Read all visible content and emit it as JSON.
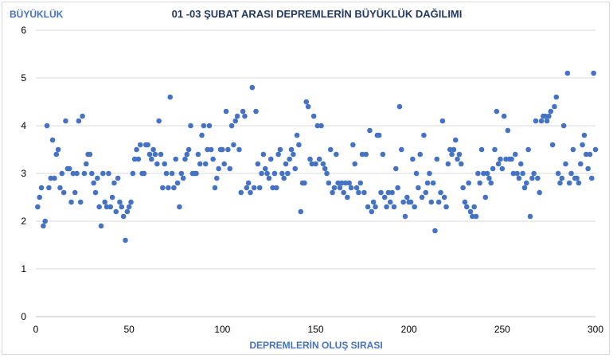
{
  "chart_data": {
    "type": "scatter",
    "title": "01 -03 ŞUBAT  ARASI DEPREMLERİN BÜYÜKLÜK DAĞILIMI",
    "xlabel": "DEPREMLERİN OLUŞ SIRASI",
    "ylabel": "BÜYÜKLÜK",
    "xlim": [
      0,
      300
    ],
    "ylim": [
      0,
      6
    ],
    "x_ticks": [
      0,
      50,
      100,
      150,
      200,
      250,
      300
    ],
    "y_ticks": [
      0,
      1,
      2,
      3,
      4,
      5,
      6
    ],
    "grid": "horizontal",
    "legend": "none",
    "marker_color": "#4472c4",
    "points": [
      [
        1,
        2.3
      ],
      [
        2,
        2.5
      ],
      [
        3,
        2.7
      ],
      [
        4,
        1.9
      ],
      [
        5,
        2.0
      ],
      [
        6,
        4.0
      ],
      [
        7,
        2.7
      ],
      [
        8,
        2.9
      ],
      [
        9,
        3.7
      ],
      [
        10,
        2.9
      ],
      [
        11,
        3.4
      ],
      [
        12,
        3.5
      ],
      [
        13,
        2.7
      ],
      [
        14,
        3.0
      ],
      [
        15,
        2.6
      ],
      [
        16,
        4.1
      ],
      [
        17,
        3.1
      ],
      [
        18,
        3.1
      ],
      [
        19,
        2.4
      ],
      [
        20,
        3.0
      ],
      [
        21,
        2.6
      ],
      [
        22,
        3.0
      ],
      [
        23,
        4.1
      ],
      [
        24,
        2.4
      ],
      [
        25,
        4.2
      ],
      [
        26,
        3.0
      ],
      [
        27,
        3.2
      ],
      [
        28,
        3.4
      ],
      [
        29,
        3.4
      ],
      [
        30,
        3.0
      ],
      [
        31,
        2.8
      ],
      [
        32,
        2.6
      ],
      [
        33,
        2.9
      ],
      [
        34,
        2.3
      ],
      [
        35,
        1.9
      ],
      [
        36,
        3.0
      ],
      [
        37,
        2.4
      ],
      [
        38,
        2.3
      ],
      [
        39,
        3.0
      ],
      [
        40,
        2.3
      ],
      [
        41,
        2.5
      ],
      [
        42,
        2.8
      ],
      [
        43,
        2.2
      ],
      [
        44,
        2.9
      ],
      [
        45,
        2.4
      ],
      [
        46,
        2.3
      ],
      [
        47,
        2.1
      ],
      [
        48,
        1.6
      ],
      [
        49,
        2.2
      ],
      [
        50,
        2.3
      ],
      [
        51,
        2.4
      ],
      [
        52,
        3.0
      ],
      [
        53,
        3.3
      ],
      [
        54,
        3.5
      ],
      [
        55,
        3.3
      ],
      [
        56,
        3.6
      ],
      [
        57,
        3.0
      ],
      [
        58,
        3.0
      ],
      [
        59,
        3.6
      ],
      [
        60,
        3.6
      ],
      [
        61,
        3.4
      ],
      [
        62,
        3.3
      ],
      [
        63,
        3.5
      ],
      [
        64,
        3.4
      ],
      [
        65,
        3.2
      ],
      [
        66,
        4.1
      ],
      [
        67,
        3.4
      ],
      [
        68,
        2.7
      ],
      [
        69,
        3.2
      ],
      [
        70,
        3.0
      ],
      [
        71,
        2.7
      ],
      [
        72,
        4.6
      ],
      [
        73,
        3.0
      ],
      [
        74,
        2.7
      ],
      [
        75,
        3.3
      ],
      [
        76,
        2.8
      ],
      [
        77,
        2.3
      ],
      [
        78,
        3.0
      ],
      [
        79,
        2.9
      ],
      [
        80,
        3.3
      ],
      [
        81,
        3.4
      ],
      [
        82,
        3.5
      ],
      [
        83,
        4.0
      ],
      [
        84,
        3.0
      ],
      [
        85,
        3.0
      ],
      [
        86,
        3.0
      ],
      [
        87,
        3.4
      ],
      [
        88,
        3.2
      ],
      [
        89,
        3.8
      ],
      [
        90,
        4.0
      ],
      [
        91,
        3.2
      ],
      [
        92,
        3.5
      ],
      [
        93,
        4.0
      ],
      [
        94,
        3.5
      ],
      [
        95,
        3.3
      ],
      [
        96,
        2.7
      ],
      [
        97,
        2.9
      ],
      [
        98,
        3.1
      ],
      [
        99,
        3.5
      ],
      [
        100,
        3.5
      ],
      [
        101,
        3.2
      ],
      [
        102,
        4.3
      ],
      [
        103,
        3.5
      ],
      [
        104,
        3.1
      ],
      [
        105,
        4.0
      ],
      [
        106,
        3.6
      ],
      [
        107,
        4.1
      ],
      [
        108,
        4.2
      ],
      [
        109,
        3.5
      ],
      [
        110,
        2.6
      ],
      [
        111,
        4.3
      ],
      [
        112,
        4.2
      ],
      [
        113,
        2.7
      ],
      [
        114,
        2.8
      ],
      [
        115,
        2.6
      ],
      [
        116,
        4.8
      ],
      [
        117,
        2.7
      ],
      [
        118,
        4.3
      ],
      [
        119,
        3.2
      ],
      [
        120,
        2.7
      ],
      [
        121,
        3.0
      ],
      [
        122,
        3.4
      ],
      [
        123,
        3.1
      ],
      [
        124,
        3.0
      ],
      [
        125,
        2.9
      ],
      [
        126,
        3.3
      ],
      [
        127,
        2.7
      ],
      [
        128,
        3.0
      ],
      [
        129,
        2.7
      ],
      [
        130,
        3.4
      ],
      [
        131,
        3.5
      ],
      [
        132,
        3.0
      ],
      [
        133,
        2.9
      ],
      [
        134,
        3.2
      ],
      [
        135,
        3.0
      ],
      [
        136,
        3.3
      ],
      [
        137,
        3.5
      ],
      [
        138,
        3.4
      ],
      [
        139,
        3.1
      ],
      [
        140,
        3.8
      ],
      [
        141,
        3.6
      ],
      [
        142,
        2.2
      ],
      [
        143,
        2.8
      ],
      [
        144,
        2.8
      ],
      [
        145,
        4.5
      ],
      [
        146,
        4.4
      ],
      [
        147,
        3.3
      ],
      [
        148,
        3.2
      ],
      [
        149,
        4.2
      ],
      [
        150,
        3.2
      ],
      [
        151,
        4.0
      ],
      [
        152,
        3.3
      ],
      [
        153,
        4.0
      ],
      [
        154,
        3.2
      ],
      [
        155,
        3.1
      ],
      [
        156,
        3.0
      ],
      [
        157,
        2.8
      ],
      [
        158,
        3.5
      ],
      [
        159,
        2.6
      ],
      [
        160,
        2.7
      ],
      [
        161,
        3.4
      ],
      [
        162,
        2.8
      ],
      [
        163,
        2.7
      ],
      [
        164,
        2.8
      ],
      [
        165,
        2.6
      ],
      [
        166,
        2.8
      ],
      [
        167,
        2.5
      ],
      [
        168,
        2.8
      ],
      [
        169,
        2.7
      ],
      [
        170,
        3.6
      ],
      [
        171,
        3.2
      ],
      [
        172,
        2.7
      ],
      [
        173,
        2.6
      ],
      [
        174,
        2.8
      ],
      [
        175,
        3.4
      ],
      [
        176,
        2.6
      ],
      [
        177,
        3.4
      ],
      [
        178,
        2.3
      ],
      [
        179,
        3.9
      ],
      [
        180,
        2.2
      ],
      [
        181,
        2.4
      ],
      [
        182,
        2.3
      ],
      [
        183,
        3.8
      ],
      [
        184,
        3.8
      ],
      [
        185,
        2.6
      ],
      [
        186,
        3.4
      ],
      [
        187,
        2.5
      ],
      [
        188,
        2.3
      ],
      [
        189,
        2.6
      ],
      [
        190,
        2.4
      ],
      [
        191,
        2.6
      ],
      [
        192,
        2.3
      ],
      [
        193,
        3.1
      ],
      [
        194,
        2.7
      ],
      [
        195,
        4.4
      ],
      [
        196,
        3.5
      ],
      [
        197,
        2.4
      ],
      [
        198,
        2.1
      ],
      [
        199,
        2.5
      ],
      [
        200,
        2.4
      ],
      [
        201,
        2.4
      ],
      [
        202,
        3.3
      ],
      [
        203,
        2.3
      ],
      [
        204,
        3.0
      ],
      [
        205,
        2.7
      ],
      [
        206,
        3.4
      ],
      [
        207,
        2.5
      ],
      [
        208,
        3.8
      ],
      [
        209,
        2.6
      ],
      [
        210,
        2.8
      ],
      [
        211,
        3.0
      ],
      [
        212,
        2.4
      ],
      [
        213,
        2.8
      ],
      [
        214,
        1.8
      ],
      [
        215,
        3.3
      ],
      [
        216,
        2.4
      ],
      [
        217,
        2.6
      ],
      [
        218,
        4.1
      ],
      [
        219,
        2.5
      ],
      [
        220,
        2.3
      ],
      [
        221,
        3.2
      ],
      [
        222,
        3.5
      ],
      [
        223,
        3.4
      ],
      [
        224,
        3.5
      ],
      [
        225,
        3.7
      ],
      [
        226,
        3.3
      ],
      [
        227,
        3.4
      ],
      [
        228,
        3.2
      ],
      [
        229,
        2.7
      ],
      [
        230,
        2.4
      ],
      [
        231,
        2.3
      ],
      [
        232,
        2.8
      ],
      [
        233,
        2.2
      ],
      [
        234,
        2.1
      ],
      [
        235,
        2.3
      ],
      [
        236,
        2.1
      ],
      [
        237,
        3.0
      ],
      [
        238,
        2.8
      ],
      [
        239,
        3.5
      ],
      [
        240,
        3.0
      ],
      [
        241,
        2.5
      ],
      [
        242,
        3.0
      ],
      [
        243,
        2.9
      ],
      [
        244,
        2.8
      ],
      [
        245,
        3.1
      ],
      [
        246,
        3.5
      ],
      [
        247,
        4.3
      ],
      [
        248,
        3.2
      ],
      [
        249,
        3.3
      ],
      [
        250,
        3.1
      ],
      [
        251,
        4.2
      ],
      [
        252,
        3.3
      ],
      [
        253,
        3.9
      ],
      [
        254,
        3.3
      ],
      [
        255,
        3.3
      ],
      [
        256,
        3.0
      ],
      [
        257,
        3.4
      ],
      [
        258,
        3.0
      ],
      [
        259,
        2.9
      ],
      [
        260,
        3.2
      ],
      [
        261,
        3.0
      ],
      [
        262,
        2.7
      ],
      [
        263,
        2.8
      ],
      [
        264,
        3.5
      ],
      [
        265,
        2.1
      ],
      [
        266,
        2.9
      ],
      [
        267,
        3.0
      ],
      [
        268,
        4.1
      ],
      [
        269,
        2.9
      ],
      [
        270,
        2.6
      ],
      [
        271,
        4.1
      ],
      [
        272,
        4.2
      ],
      [
        273,
        4.2
      ],
      [
        274,
        4.1
      ],
      [
        275,
        4.2
      ],
      [
        276,
        4.3
      ],
      [
        277,
        3.6
      ],
      [
        278,
        4.4
      ],
      [
        279,
        4.6
      ],
      [
        280,
        3.0
      ],
      [
        281,
        2.8
      ],
      [
        282,
        2.9
      ],
      [
        283,
        4.0
      ],
      [
        284,
        3.2
      ],
      [
        285,
        5.1
      ],
      [
        286,
        2.8
      ],
      [
        287,
        3.0
      ],
      [
        288,
        3.5
      ],
      [
        289,
        2.9
      ],
      [
        290,
        2.9
      ],
      [
        291,
        2.8
      ],
      [
        292,
        3.2
      ],
      [
        293,
        3.6
      ],
      [
        294,
        3.8
      ],
      [
        295,
        3.4
      ],
      [
        296,
        3.1
      ],
      [
        297,
        3.4
      ],
      [
        298,
        2.9
      ],
      [
        299,
        5.1
      ],
      [
        300,
        3.5
      ]
    ]
  }
}
